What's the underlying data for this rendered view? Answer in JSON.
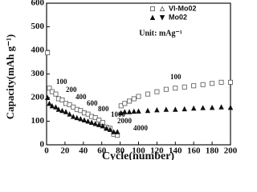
{
  "chart_data": {
    "type": "scatter",
    "x_label": "Cycle(number)",
    "y_label": "Capacity(mAh g⁻¹)",
    "note": "Unit: mAg⁻¹",
    "annotations": [
      "100",
      "200",
      "400",
      "600",
      "800",
      "1000",
      "2000",
      "4000",
      "100"
    ],
    "xlim": [
      0,
      200
    ],
    "xticks": [
      0,
      20,
      40,
      60,
      80,
      100,
      120,
      140,
      160,
      180,
      200
    ],
    "ylim": [
      0,
      600
    ],
    "yticks": [
      0,
      100,
      200,
      300,
      400,
      500,
      600
    ],
    "x": [
      1,
      3,
      6,
      10,
      13,
      17,
      21,
      25,
      29,
      33,
      37,
      41,
      45,
      49,
      53,
      57,
      61,
      65,
      69,
      73,
      77,
      81,
      85,
      90,
      95,
      100,
      110,
      120,
      130,
      140,
      150,
      160,
      170,
      180,
      190,
      200
    ],
    "series": [
      {
        "name": "VI-Mo02",
        "color": "#555555",
        "markers": [
          "square-open",
          "triangle-up-open"
        ],
        "values": [
          390,
          240,
          225,
          215,
          195,
          190,
          175,
          170,
          160,
          150,
          145,
          135,
          130,
          120,
          115,
          105,
          95,
          75,
          70,
          45,
          40,
          165,
          175,
          185,
          195,
          205,
          215,
          225,
          235,
          240,
          245,
          250,
          255,
          260,
          265,
          265
        ]
      },
      {
        "name": "Mo02",
        "color": "#111111",
        "markers": [
          "triangle-up",
          "triangle-down"
        ],
        "values": [
          200,
          175,
          165,
          160,
          150,
          145,
          140,
          130,
          120,
          115,
          110,
          105,
          100,
          95,
          90,
          85,
          80,
          70,
          65,
          55,
          55,
          135,
          140,
          140,
          142,
          143,
          145,
          148,
          150,
          150,
          152,
          155,
          157,
          158,
          160,
          158
        ]
      }
    ]
  }
}
